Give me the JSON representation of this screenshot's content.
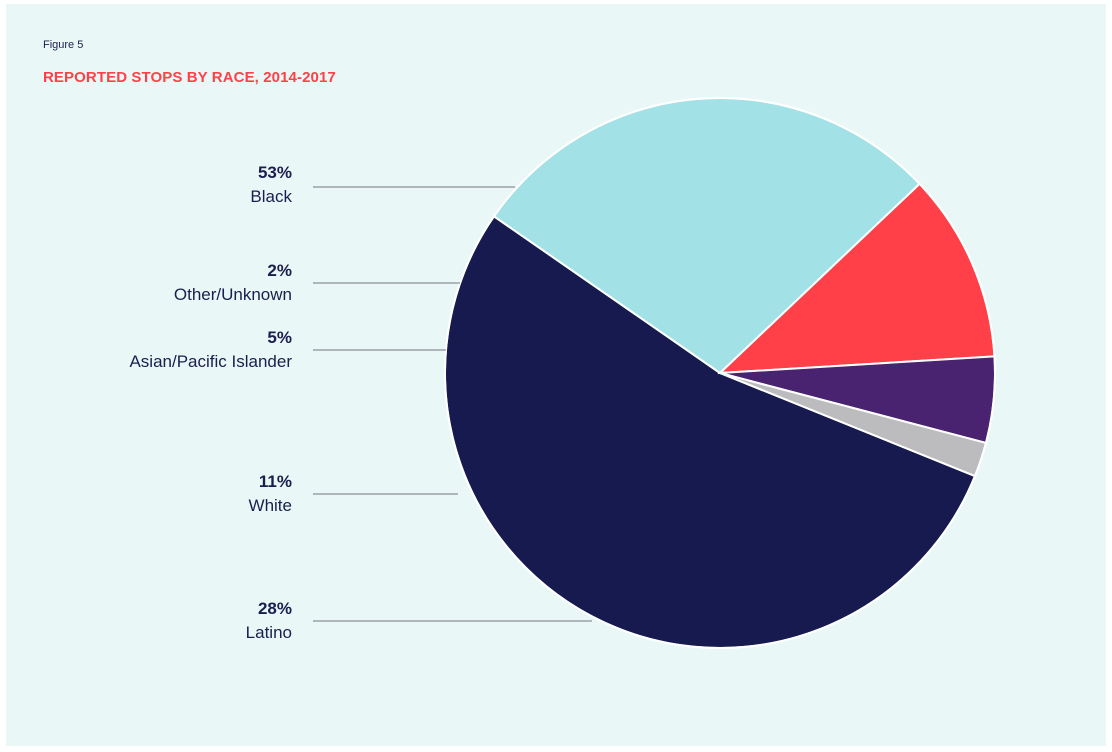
{
  "figure_label": "Figure 5",
  "chart_data": {
    "type": "pie",
    "title": "REPORTED STOPS BY RACE, 2014-2017",
    "start_angle_deg": 22,
    "slices": [
      {
        "name": "Black",
        "value": 53,
        "label": "53%",
        "color": "#161a4f"
      },
      {
        "name": "Latino",
        "value": 28,
        "label": "28%",
        "color": "#a2e2e6"
      },
      {
        "name": "White",
        "value": 11,
        "label": "11%",
        "color": "#ff4048"
      },
      {
        "name": "Asian/Pacific Islander",
        "value": 5,
        "label": "5%",
        "color": "#4a2370"
      },
      {
        "name": "Other/Unknown",
        "value": 2,
        "label": "2%",
        "color": "#bcbcbf"
      }
    ]
  }
}
